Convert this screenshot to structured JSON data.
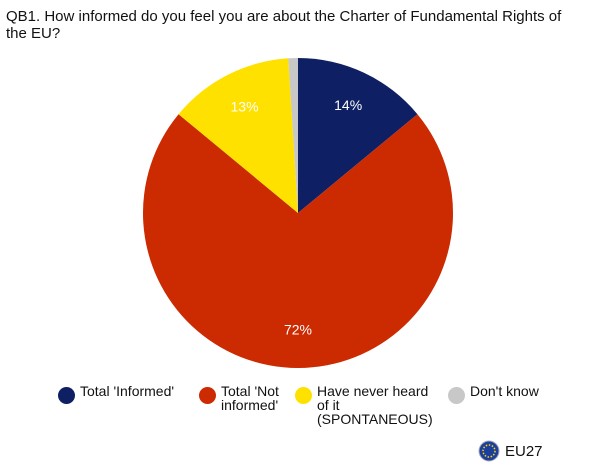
{
  "chart_data": {
    "type": "pie",
    "title": "QB1. How informed do you feel you are about the Charter of Fundamental Rights of the EU?",
    "categories": [
      "Total 'Informed'",
      "Total 'Not informed'",
      "Have never heard of it (SPONTANEOUS)",
      "Don't know"
    ],
    "values": [
      14,
      72,
      13,
      1
    ],
    "value_labels": [
      "14%",
      "72%",
      "13%",
      null
    ],
    "colors": [
      "#0f1f63",
      "#cc2a00",
      "#ffe100",
      "#c8c8c8"
    ],
    "start_angle": 0,
    "direction": "clockwise",
    "footnote": "EU27"
  }
}
